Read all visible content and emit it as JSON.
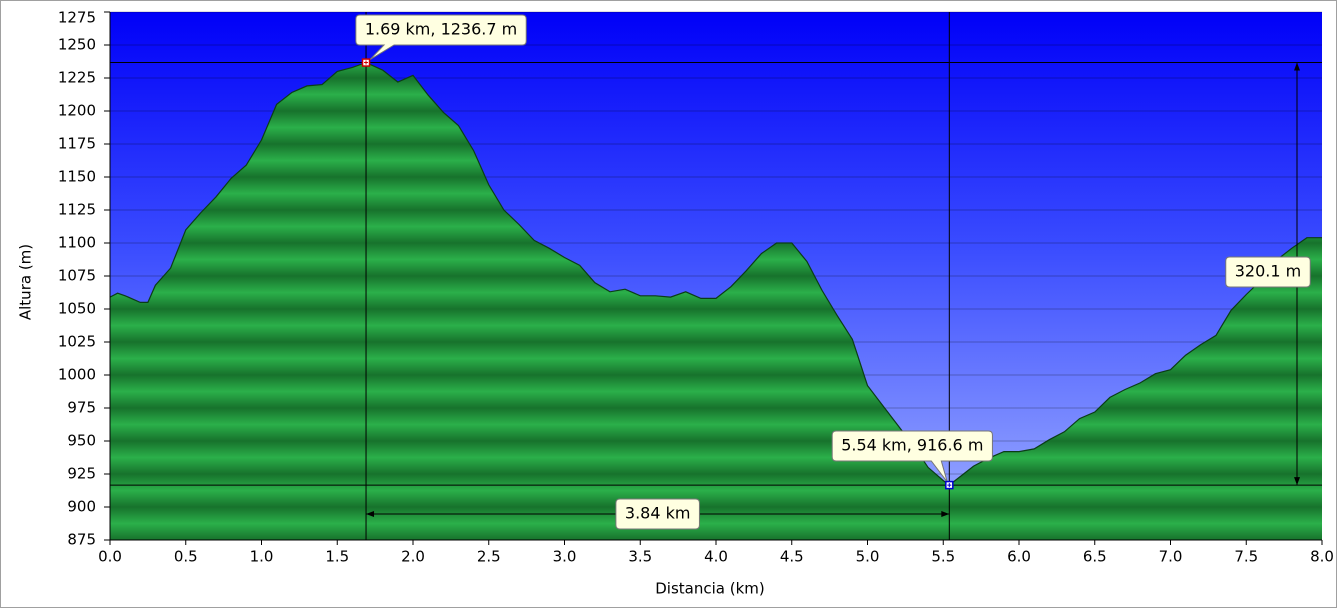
{
  "chart_data": {
    "type": "area",
    "xlabel": "Distancia   (km)",
    "ylabel": "Altura (m)",
    "x": [
      0.0,
      0.05,
      0.1,
      0.2,
      0.25,
      0.3,
      0.4,
      0.5,
      0.6,
      0.7,
      0.8,
      0.9,
      1.0,
      1.1,
      1.2,
      1.3,
      1.4,
      1.5,
      1.6,
      1.69,
      1.8,
      1.9,
      2.0,
      2.1,
      2.2,
      2.3,
      2.4,
      2.5,
      2.6,
      2.7,
      2.8,
      2.9,
      3.0,
      3.1,
      3.2,
      3.3,
      3.4,
      3.5,
      3.6,
      3.7,
      3.8,
      3.9,
      4.0,
      4.1,
      4.2,
      4.3,
      4.4,
      4.5,
      4.6,
      4.7,
      4.8,
      4.9,
      5.0,
      5.1,
      5.2,
      5.3,
      5.4,
      5.5,
      5.54,
      5.6,
      5.7,
      5.8,
      5.9,
      6.0,
      6.1,
      6.2,
      6.3,
      6.4,
      6.5,
      6.6,
      6.7,
      6.8,
      6.9,
      7.0,
      7.1,
      7.2,
      7.3,
      7.4,
      7.5,
      7.6,
      7.7,
      7.8,
      7.9,
      8.0
    ],
    "series": [
      {
        "color": "#1f9a3c",
        "values": [
          1059,
          1062,
          1060,
          1055,
          1055,
          1068,
          1081,
          1110,
          1123,
          1135,
          1149,
          1159,
          1178,
          1205,
          1214,
          1219,
          1220,
          1230,
          1233,
          1236.7,
          1231,
          1222,
          1227,
          1212,
          1199,
          1189,
          1170,
          1144,
          1125,
          1114,
          1102,
          1096,
          1089,
          1083,
          1070,
          1063,
          1065,
          1060,
          1060,
          1059,
          1063,
          1058,
          1058,
          1067,
          1079,
          1092,
          1100,
          1100,
          1086,
          1064,
          1045,
          1027,
          992,
          977,
          962,
          947,
          930,
          920,
          916.6,
          922,
          931,
          937,
          942,
          942,
          944,
          951,
          957,
          967,
          972,
          983,
          989,
          994,
          1001,
          1004,
          1015,
          1023,
          1030,
          1049,
          1061,
          1072,
          1087,
          1096,
          1104,
          1104
        ]
      }
    ],
    "markers": [
      {
        "x": 1.69,
        "y": 1236.7,
        "label": "1.69 km, 1236.7 m",
        "color": "#d00000"
      },
      {
        "x": 5.54,
        "y": 916.6,
        "label": "5.54 km, 916.6 m",
        "color": "#0000d0"
      }
    ],
    "distance_label": "3.84 km",
    "height_label": "320.1 m",
    "xlim": [
      0,
      8
    ],
    "ylim": [
      875,
      1275
    ],
    "xticks": [
      {
        "value": 0,
        "label": "0.0"
      },
      0.5,
      {
        "value": 1,
        "label": "1.0"
      },
      1.5,
      {
        "value": 2,
        "label": "2.0"
      },
      2.5,
      {
        "value": 3,
        "label": "3.0"
      },
      3.5,
      {
        "value": 4,
        "label": "4.0"
      },
      4.5,
      {
        "value": 5,
        "label": "5.0"
      },
      5.5,
      {
        "value": 6,
        "label": "6.0"
      },
      6.5,
      {
        "value": 7,
        "label": "7.0"
      },
      7.5,
      {
        "value": 8,
        "label": "8.0"
      }
    ],
    "yticks": [
      875,
      900,
      925,
      950,
      975,
      1000,
      1025,
      1050,
      1075,
      1100,
      1125,
      1150,
      1175,
      1200,
      1225,
      1250,
      1275
    ],
    "grid": true
  }
}
